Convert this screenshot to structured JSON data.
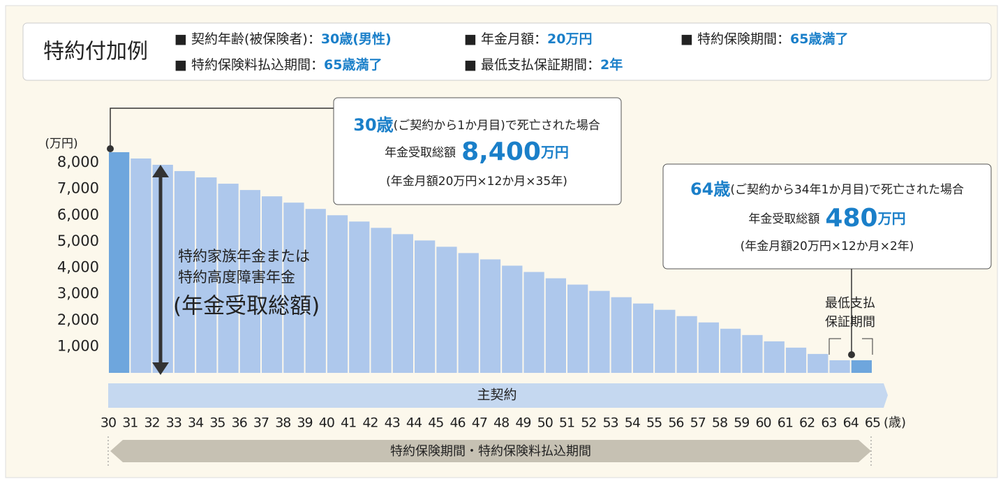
{
  "header": {
    "title": "特約付加例",
    "items": [
      {
        "label": "■ 契約年齢(被保険者)：",
        "value": "30歳(男性)"
      },
      {
        "label": "■ 年金月額：",
        "value": "20万円"
      },
      {
        "label": "■ 特約保険期間：",
        "value": "65歳満了"
      },
      {
        "label": "■ 特約保険料払込期間：",
        "value": "65歳満了"
      },
      {
        "label": "■ 最低支払保証期間：",
        "value": "2年"
      }
    ]
  },
  "chart_data": {
    "type": "bar",
    "y_unit": "(万円)",
    "x_unit": "(歳)",
    "x": [
      30,
      31,
      32,
      33,
      34,
      35,
      36,
      37,
      38,
      39,
      40,
      41,
      42,
      43,
      44,
      45,
      46,
      47,
      48,
      49,
      50,
      51,
      52,
      53,
      54,
      55,
      56,
      57,
      58,
      59,
      60,
      61,
      62,
      63,
      64
    ],
    "values": [
      8400,
      8160,
      7920,
      7680,
      7440,
      7200,
      6960,
      6720,
      6480,
      6240,
      6000,
      5760,
      5520,
      5280,
      5040,
      4800,
      4560,
      4320,
      4080,
      3840,
      3600,
      3360,
      3120,
      2880,
      2640,
      2400,
      2160,
      1920,
      1680,
      1440,
      1200,
      960,
      720,
      480,
      480
    ],
    "colors": [
      "#6ea6dd",
      "#aec8ec",
      "#aec8ec",
      "#aec8ec",
      "#aec8ec",
      "#aec8ec",
      "#aec8ec",
      "#aec8ec",
      "#aec8ec",
      "#aec8ec",
      "#aec8ec",
      "#aec8ec",
      "#aec8ec",
      "#aec8ec",
      "#aec8ec",
      "#aec8ec",
      "#aec8ec",
      "#aec8ec",
      "#aec8ec",
      "#aec8ec",
      "#aec8ec",
      "#aec8ec",
      "#aec8ec",
      "#aec8ec",
      "#aec8ec",
      "#aec8ec",
      "#aec8ec",
      "#aec8ec",
      "#aec8ec",
      "#aec8ec",
      "#aec8ec",
      "#aec8ec",
      "#aec8ec",
      "#aec8ec",
      "#6ea6dd"
    ],
    "xlim": [
      30,
      65
    ],
    "xticks": [
      30,
      31,
      32,
      33,
      34,
      35,
      36,
      37,
      38,
      39,
      40,
      41,
      42,
      43,
      44,
      45,
      46,
      47,
      48,
      49,
      50,
      51,
      52,
      53,
      54,
      55,
      56,
      57,
      58,
      59,
      60,
      61,
      62,
      63,
      64,
      65
    ],
    "ylim": [
      0,
      8000
    ],
    "yticks": [
      {
        "value": 1000,
        "label": "1,000"
      },
      {
        "value": 2000,
        "label": "2,000"
      },
      {
        "value": 3000,
        "label": "3,000"
      },
      {
        "value": 4000,
        "label": "4,000"
      },
      {
        "value": 5000,
        "label": "5,000"
      },
      {
        "value": 6000,
        "label": "6,000"
      },
      {
        "value": 7000,
        "label": "7,000"
      },
      {
        "value": 8000,
        "label": "8,000"
      }
    ],
    "annotations": {
      "callout_first": {
        "age": "30歳",
        "case": "(ご契約から1か月目)で死亡された場合",
        "total_label": "年金受取総額",
        "total": "8,400",
        "total_unit": "万円",
        "formula": "(年金月額20万円×12か月×35年)"
      },
      "callout_last": {
        "age": "64歳",
        "case": "(ご契約から34年1か月目)で死亡された場合",
        "total_label": "年金受取総額",
        "total": "480",
        "total_unit": "万円",
        "formula": "(年金月額20万円×12か月×2年)"
      },
      "benefit": [
        "特約家族年金または",
        "特約高度障害年金",
        "(年金受取総額)"
      ],
      "guarantee": [
        "最低支払",
        "保証期間"
      ],
      "main_contract": "主契約",
      "rider_period": "特約保険期間・特約保険料払込期間"
    }
  }
}
